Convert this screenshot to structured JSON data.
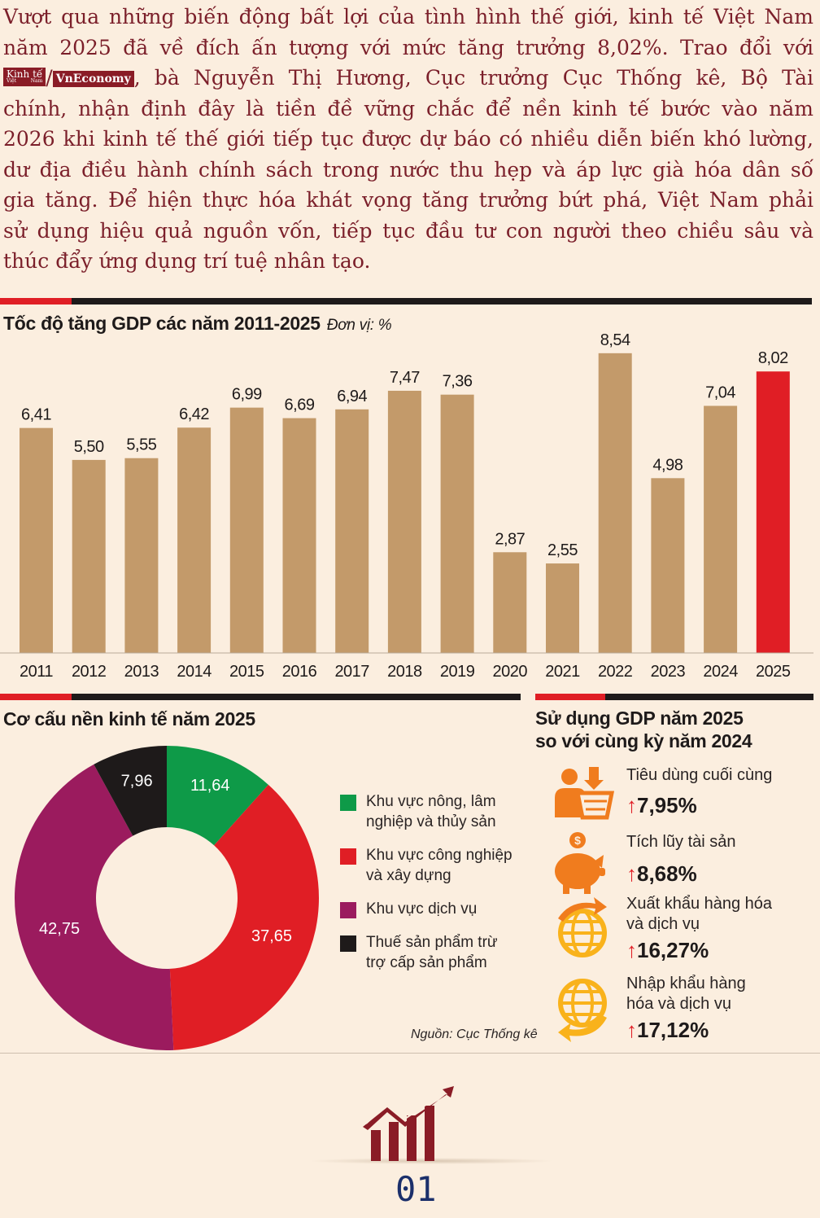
{
  "intro": {
    "l1": "Vượt qua những biến động bất lợi của tình hình thế giới, kinh tế Việt Nam",
    "l2": "năm 2025 đã về đích ấn tượng với mức tăng trưởng 8,02%. Trao đổi với",
    "logo_kt": "Kinh tế",
    "logo_kt_sub": "Việt Nam",
    "logo_sep": "/",
    "logo_vn": "VnEconomy",
    "l3": ", bà Nguyễn Thị Hương, Cục trưởng Cục Thống kê, Bộ Tài",
    "l4": "chính, nhận định đây là tiền đề vững chắc để nền kinh tế bước vào năm",
    "l5": "2026 khi kinh tế thế giới tiếp tục được dự báo có nhiều diễn biến khó lường,",
    "l6": "dư địa điều hành chính sách trong nước thu hẹp và áp lực già hóa dân số",
    "l7": "gia tăng. Để hiện thực hóa khát vọng tăng trưởng bứt phá, Việt Nam phải",
    "l8": "sử dụng hiệu quả nguồn vốn, tiếp tục đầu tư con người theo chiều sâu và",
    "l9": "thúc đẩy ứng dụng trí tuệ nhân tạo."
  },
  "colors": {
    "bar": "#c39a6a",
    "bar_highlight": "#e01e25",
    "agri": "#0e9a48",
    "industry": "#e01e25",
    "services": "#9b1b5e",
    "tax": "#1e1a1a",
    "icon": "#f07c1e",
    "icon2": "#f9b21b"
  },
  "chart_data": [
    {
      "type": "bar",
      "title": "Tốc độ tăng GDP các năm 2011-2025",
      "unit_label": "Đơn vị: %",
      "categories": [
        "2011",
        "2012",
        "2013",
        "2014",
        "2015",
        "2016",
        "2017",
        "2018",
        "2019",
        "2020",
        "2021",
        "2022",
        "2023",
        "2024",
        "2025"
      ],
      "values": [
        6.41,
        5.5,
        5.55,
        6.42,
        6.99,
        6.69,
        6.94,
        7.47,
        7.36,
        2.87,
        2.55,
        8.54,
        4.98,
        7.04,
        8.02
      ],
      "labels": [
        "6,41",
        "5,50",
        "5,55",
        "6,42",
        "6,99",
        "6,69",
        "6,94",
        "7,47",
        "7,36",
        "2,87",
        "2,55",
        "8,54",
        "4,98",
        "7,04",
        "8,02"
      ],
      "highlight": "2025",
      "ylim": [
        0,
        9
      ]
    },
    {
      "type": "pie",
      "title": "Cơ cấu nền kinh tế năm 2025",
      "donut": true,
      "slices": [
        {
          "name": "Khu vực nông, lâm nghiệp và thủy sản",
          "value": 11.64,
          "label": "11,64"
        },
        {
          "name": "Khu vực công nghiệp và xây dựng",
          "value": 37.65,
          "label": "37,65"
        },
        {
          "name": "Khu vực dịch vụ",
          "value": 42.75,
          "label": "42,75"
        },
        {
          "name": "Thuế sản phẩm trừ trợ cấp sản phẩm",
          "value": 7.96,
          "label": "7,96"
        }
      ]
    }
  ],
  "structure": {
    "legend": [
      {
        "l1": "Khu vực nông, lâm",
        "l2": "nghiệp và thủy sản"
      },
      {
        "l1": "Khu vực công nghiệp",
        "l2": "và xây dựng"
      },
      {
        "l1": "Khu vực dịch vụ",
        "l2": ""
      },
      {
        "l1": "Thuế sản phẩm trừ",
        "l2": "trợ cấp sản phẩm"
      }
    ],
    "source": "Nguồn: Cục Thống kê"
  },
  "usage": {
    "title_l1": "Sử dụng GDP năm 2025",
    "title_l2": "so với cùng kỳ năm 2024",
    "items": [
      {
        "icon": "shopping-consumer-icon",
        "l1": "Tiêu dùng cuối cùng",
        "l2": "",
        "arrow": "↑",
        "value": "7,95%"
      },
      {
        "icon": "piggy-bank-icon",
        "l1": "Tích lũy tài sản",
        "l2": "",
        "arrow": "↑",
        "value": "8,68%"
      },
      {
        "icon": "globe-export-icon",
        "l1": "Xuất khẩu hàng hóa",
        "l2": "và dịch vụ",
        "arrow": "↑",
        "value": "16,27%"
      },
      {
        "icon": "globe-import-icon",
        "l1": "Nhập khẩu hàng",
        "l2": "hóa và dịch vụ",
        "arrow": "↑",
        "value": "17,12%"
      }
    ]
  },
  "page_number": "01"
}
